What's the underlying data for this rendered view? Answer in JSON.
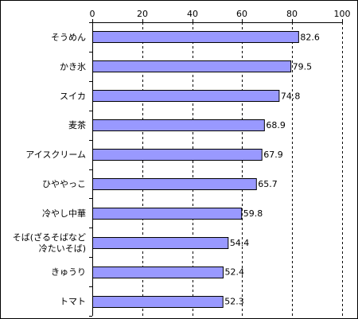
{
  "chart_data": {
    "type": "bar",
    "orientation": "horizontal",
    "title": "",
    "xlabel": "",
    "ylabel": "",
    "xlim": [
      0,
      100
    ],
    "x_ticks": [
      0,
      20,
      40,
      60,
      80,
      100
    ],
    "x_tick_labels": [
      "0",
      "20",
      "40",
      "60",
      "80",
      "100"
    ],
    "x_axis_position": "top",
    "grid": "vertical dashed",
    "legend": "none",
    "categories": [
      [
        "そうめん"
      ],
      [
        "かき氷"
      ],
      [
        "スイカ"
      ],
      [
        "麦茶"
      ],
      [
        "アイスクリーム"
      ],
      [
        "ひややっこ"
      ],
      [
        "冷やし中華"
      ],
      [
        "そば(ざるそばなど",
        "冷たいそば)"
      ],
      [
        "きゅうり"
      ],
      [
        "トマト"
      ]
    ],
    "values": [
      82.6,
      79.5,
      74.8,
      68.9,
      67.9,
      65.7,
      59.8,
      54.4,
      52.4,
      52.3
    ],
    "value_labels": [
      "82.6",
      "79.5",
      "74.8",
      "68.9",
      "67.9",
      "65.7",
      "59.8",
      "54.4",
      "52.4",
      "52.3"
    ],
    "bar_color": "#9999ff",
    "bar_edge_color": "#000000"
  }
}
